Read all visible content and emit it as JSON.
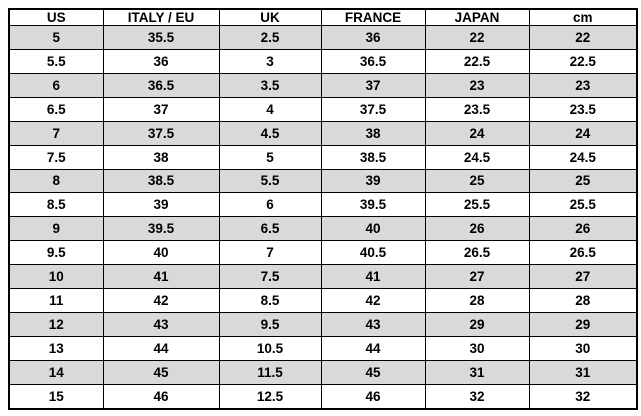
{
  "table": {
    "header": [
      "US",
      "ITALY / EU",
      "UK",
      "FRANCE",
      "JAPAN",
      "cm"
    ],
    "rows": [
      [
        "5",
        "35.5",
        "2.5",
        "36",
        "22",
        "22"
      ],
      [
        "5.5",
        "36",
        "3",
        "36.5",
        "22.5",
        "22.5"
      ],
      [
        "6",
        "36.5",
        "3.5",
        "37",
        "23",
        "23"
      ],
      [
        "6.5",
        "37",
        "4",
        "37.5",
        "23.5",
        "23.5"
      ],
      [
        "7",
        "37.5",
        "4.5",
        "38",
        "24",
        "24"
      ],
      [
        "7.5",
        "38",
        "5",
        "38.5",
        "24.5",
        "24.5"
      ],
      [
        "8",
        "38.5",
        "5.5",
        "39",
        "25",
        "25"
      ],
      [
        "8.5",
        "39",
        "6",
        "39.5",
        "25.5",
        "25.5"
      ],
      [
        "9",
        "39.5",
        "6.5",
        "40",
        "26",
        "26"
      ],
      [
        "9.5",
        "40",
        "7",
        "40.5",
        "26.5",
        "26.5"
      ],
      [
        "10",
        "41",
        "7.5",
        "41",
        "27",
        "27"
      ],
      [
        "11",
        "42",
        "8.5",
        "42",
        "28",
        "28"
      ],
      [
        "12",
        "43",
        "9.5",
        "43",
        "29",
        "29"
      ],
      [
        "13",
        "44",
        "10.5",
        "44",
        "30",
        "30"
      ],
      [
        "14",
        "45",
        "11.5",
        "45",
        "31",
        "31"
      ],
      [
        "15",
        "46",
        "12.5",
        "46",
        "32",
        "32"
      ]
    ]
  }
}
